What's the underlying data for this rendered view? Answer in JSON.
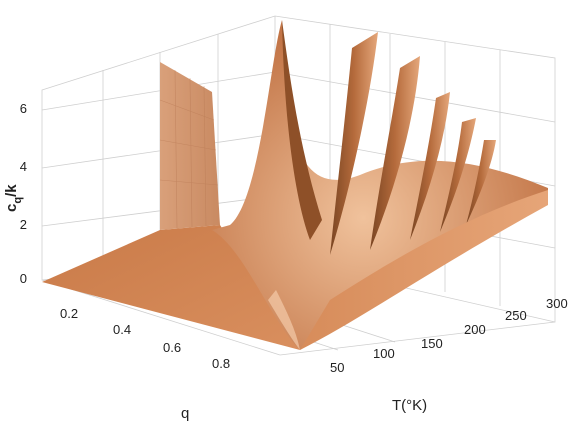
{
  "chart_data": {
    "type": "surface3d",
    "title": "",
    "zlabel": {
      "main": "c",
      "sub": "q",
      "tail": "/k"
    },
    "xlabel": "T(°K)",
    "ylabel": "q",
    "x_ticks": [
      "50",
      "100",
      "150",
      "200",
      "250",
      "300"
    ],
    "y_ticks": [
      "0.2",
      "0.4",
      "0.6",
      "0.8"
    ],
    "z_ticks": [
      "0",
      "2",
      "4",
      "6"
    ],
    "zlim": [
      0,
      7
    ],
    "surface_color": "#d4895a",
    "grid": true,
    "ridges_q": [
      0.0,
      0.5,
      0.667,
      0.75,
      0.8,
      0.833
    ],
    "ridge_peak_T": [
      70,
      104,
      144,
      188,
      232,
      276
    ]
  }
}
